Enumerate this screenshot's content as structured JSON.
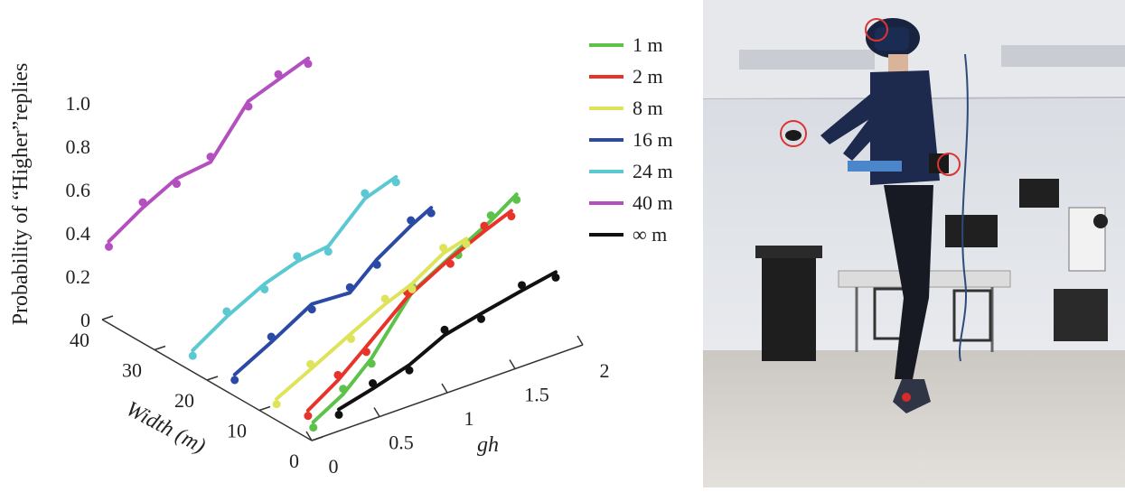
{
  "chart_data": {
    "type": "line",
    "projection": "3d",
    "zlabel": "Probability of “Higher”replies",
    "xlabel": "gh",
    "ylabel": "Width (m)",
    "x_ticks": [
      "0",
      "0.5",
      "1",
      "1.5",
      "2"
    ],
    "y_ticks": [
      "0",
      "10",
      "20",
      "30",
      "40"
    ],
    "z_ticks": [
      "0",
      "0.2",
      "0.4",
      "0.6",
      "0.8",
      "1.0"
    ],
    "xlim": [
      0,
      2
    ],
    "ylim": [
      0,
      40
    ],
    "zlim": [
      0,
      1.0
    ],
    "legend_position": "top-right",
    "series": [
      {
        "name": "1 m",
        "color": "#5cc24a",
        "width": 1,
        "points": [
          [
            0.05,
            0.06
          ],
          [
            0.27,
            0.14
          ],
          [
            0.48,
            0.26
          ],
          [
            0.78,
            0.5
          ],
          [
            1.12,
            0.62
          ],
          [
            1.36,
            0.7
          ],
          [
            1.55,
            0.78
          ]
        ]
      },
      {
        "name": "2 m",
        "color": "#e8332a",
        "width": 2,
        "points": [
          [
            0.05,
            0.1
          ],
          [
            0.27,
            0.19
          ],
          [
            0.48,
            0.3
          ],
          [
            0.78,
            0.46
          ],
          [
            1.1,
            0.57
          ],
          [
            1.35,
            0.64
          ],
          [
            1.55,
            0.69
          ]
        ]
      },
      {
        "name": "8 m",
        "color": "#dfe35a",
        "width": 8,
        "points": [
          [
            0.05,
            0.07
          ],
          [
            0.3,
            0.15
          ],
          [
            0.6,
            0.25
          ],
          [
            0.85,
            0.33
          ],
          [
            1.05,
            0.38
          ],
          [
            1.28,
            0.47
          ],
          [
            1.45,
            0.5
          ]
        ]
      },
      {
        "name": "16 m",
        "color": "#2b4aa6",
        "width": 16,
        "points": [
          [
            0.05,
            0.07
          ],
          [
            0.32,
            0.16
          ],
          [
            0.62,
            0.27
          ],
          [
            0.9,
            0.26
          ],
          [
            1.1,
            0.37
          ],
          [
            1.35,
            0.47
          ],
          [
            1.5,
            0.52
          ]
        ]
      },
      {
        "name": "24 m",
        "color": "#5cc8d2",
        "width": 24,
        "points": [
          [
            0.05,
            0.07
          ],
          [
            0.3,
            0.17
          ],
          [
            0.58,
            0.26
          ],
          [
            0.82,
            0.31
          ],
          [
            1.05,
            0.33
          ],
          [
            1.32,
            0.49
          ],
          [
            1.55,
            0.54
          ]
        ]
      },
      {
        "name": "40 m",
        "color": "#b44fc0",
        "width": 40,
        "points": [
          [
            0.05,
            0.35
          ],
          [
            0.3,
            0.45
          ],
          [
            0.55,
            0.53
          ],
          [
            0.8,
            0.55
          ],
          [
            1.08,
            0.77
          ],
          [
            1.3,
            0.82
          ],
          [
            1.52,
            0.87
          ]
        ]
      },
      {
        "name": "∞ m",
        "color": "#111111",
        "width": 0,
        "points": [
          [
            0.2,
            0.1
          ],
          [
            0.45,
            0.14
          ],
          [
            0.72,
            0.19
          ],
          [
            0.98,
            0.27
          ],
          [
            1.25,
            0.31
          ],
          [
            1.55,
            0.35
          ],
          [
            1.8,
            0.38
          ]
        ]
      }
    ]
  },
  "photo": {
    "description_icon": "vr-jump-photo"
  }
}
